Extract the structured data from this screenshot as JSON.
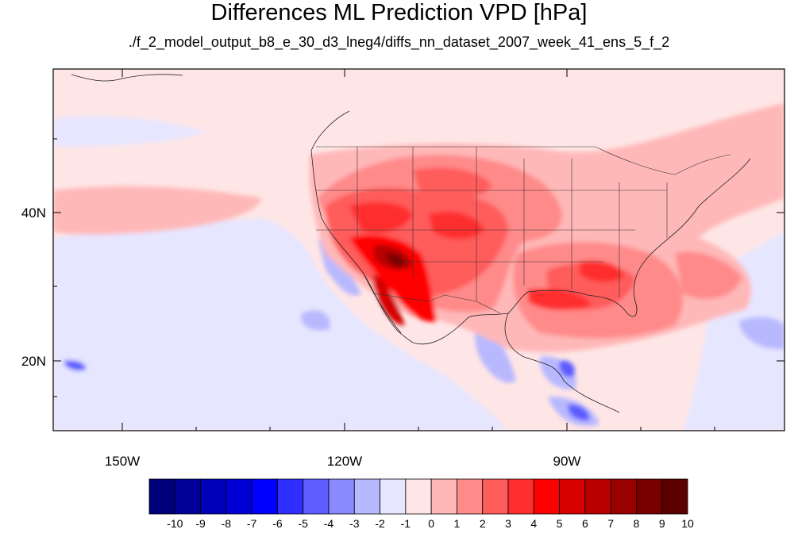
{
  "title": "Differences ML Prediction VPD [hPa]",
  "subtitle": "./f_2_model_output_b8_e_30_d3_lneg4/diffs_nn_dataset_2007_week_41_ens_5_f_2",
  "map": {
    "lat_labels": [
      "40N",
      "20N"
    ],
    "lon_labels": [
      "150W",
      "120W",
      "90W"
    ],
    "lon_range": [
      -159.5,
      -61.5
    ],
    "lat_range": [
      10.5,
      59.5
    ]
  },
  "colorbar": {
    "labels": [
      "-10",
      "-9",
      "-8",
      "-7",
      "-6",
      "-5",
      "-4",
      "-3",
      "-2",
      "-1",
      "0",
      "1",
      "2",
      "3",
      "4",
      "5",
      "6",
      "7",
      "8",
      "9",
      "10"
    ],
    "colors": [
      "#00007a",
      "#000099",
      "#0000b8",
      "#0000d6",
      "#0000ff",
      "#2e2eff",
      "#5c5cff",
      "#8a8aff",
      "#b8b8ff",
      "#e6e6ff",
      "#ffe6e6",
      "#ffb8b8",
      "#ff8a8a",
      "#ff5c5c",
      "#ff2e2e",
      "#ff0000",
      "#d60000",
      "#b80000",
      "#990000",
      "#7a0000",
      "#5c0000"
    ]
  }
}
